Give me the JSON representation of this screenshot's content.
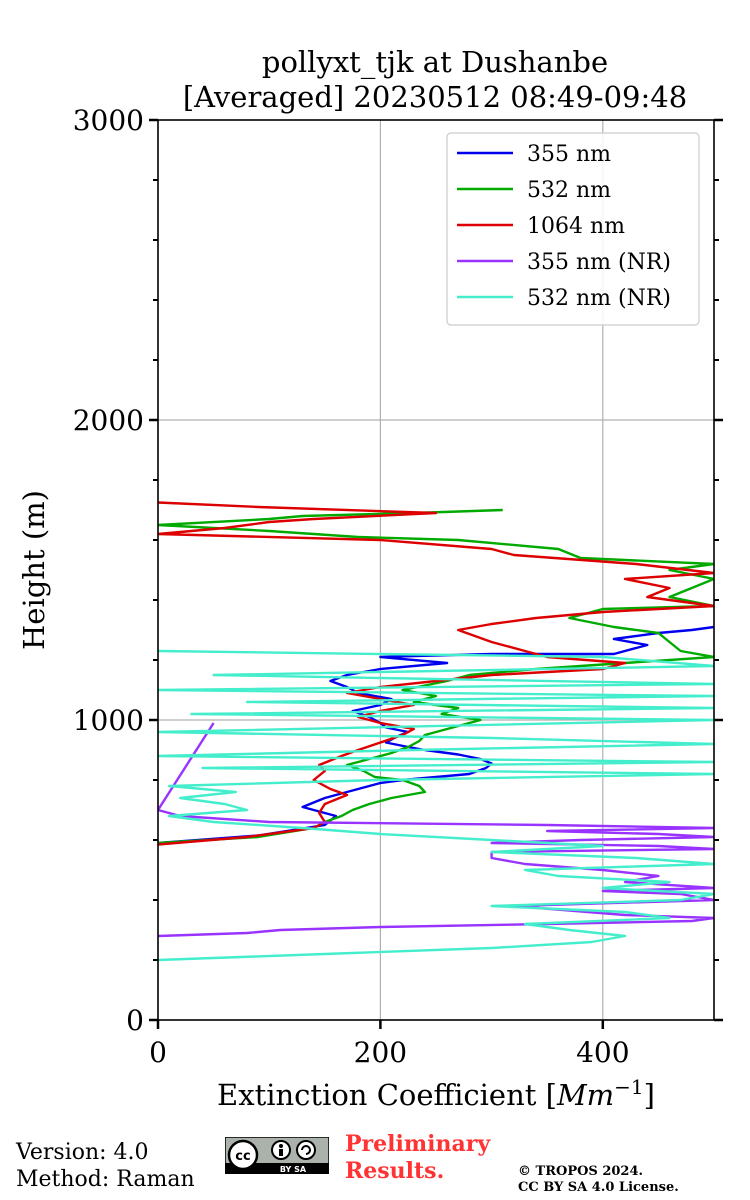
{
  "chart_data": {
    "type": "line",
    "title": "pollyxt_tjk at Dushanbe\n[Averaged] 20230512 08:49-09:48",
    "title_lines": [
      "pollyxt_tjk at Dushanbe",
      "[Averaged] 20230512 08:49-09:48"
    ],
    "xlabel": "Extinction Coefficient [Mm⁻¹]",
    "xlabel_main": "Extinction Coefficient [",
    "xlabel_unit": "Mm",
    "xlabel_exp": "−1",
    "xlabel_close": "]",
    "ylabel": "Height (m)",
    "xlim": [
      0,
      500
    ],
    "ylim": [
      0,
      3000
    ],
    "xticks": [
      0,
      200,
      400
    ],
    "yticks": [
      0,
      1000,
      2000,
      3000
    ],
    "yminor_step": 200,
    "grid": true,
    "legend_position": "top-right",
    "series": [
      {
        "name": "355 nm",
        "color": "#0000ee",
        "points": [
          [
            0,
            590
          ],
          [
            90,
            615
          ],
          [
            150,
            650
          ],
          [
            160,
            680
          ],
          [
            140,
            700
          ],
          [
            130,
            710
          ],
          [
            150,
            740
          ],
          [
            170,
            760
          ],
          [
            200,
            790
          ],
          [
            220,
            800
          ],
          [
            280,
            820
          ],
          [
            295,
            840
          ],
          [
            300,
            855
          ],
          [
            290,
            870
          ],
          [
            270,
            885
          ],
          [
            240,
            900
          ],
          [
            225,
            910
          ],
          [
            205,
            925
          ],
          [
            215,
            945
          ],
          [
            225,
            960
          ],
          [
            205,
            975
          ],
          [
            200,
            990
          ],
          [
            190,
            1010
          ],
          [
            175,
            1030
          ],
          [
            200,
            1050
          ],
          [
            210,
            1070
          ],
          [
            180,
            1090
          ],
          [
            170,
            1110
          ],
          [
            155,
            1130
          ],
          [
            170,
            1150
          ],
          [
            200,
            1170
          ],
          [
            260,
            1190
          ],
          [
            200,
            1210
          ],
          [
            300,
            1220
          ],
          [
            410,
            1220
          ],
          [
            440,
            1250
          ],
          [
            410,
            1270
          ],
          [
            450,
            1290
          ],
          [
            480,
            1300
          ],
          [
            500,
            1310
          ]
        ]
      },
      {
        "name": "532 nm",
        "color": "#00aa00",
        "points": [
          [
            0,
            590
          ],
          [
            90,
            610
          ],
          [
            140,
            640
          ],
          [
            150,
            660
          ],
          [
            165,
            680
          ],
          [
            175,
            700
          ],
          [
            190,
            720
          ],
          [
            210,
            740
          ],
          [
            240,
            760
          ],
          [
            235,
            780
          ],
          [
            220,
            800
          ],
          [
            195,
            810
          ],
          [
            185,
            830
          ],
          [
            170,
            850
          ],
          [
            190,
            870
          ],
          [
            210,
            890
          ],
          [
            225,
            910
          ],
          [
            235,
            930
          ],
          [
            240,
            950
          ],
          [
            270,
            980
          ],
          [
            290,
            1000
          ],
          [
            255,
            1020
          ],
          [
            270,
            1040
          ],
          [
            230,
            1060
          ],
          [
            250,
            1080
          ],
          [
            220,
            1100
          ],
          [
            260,
            1130
          ],
          [
            280,
            1150
          ],
          [
            340,
            1170
          ],
          [
            420,
            1190
          ],
          [
            500,
            1210
          ],
          [
            470,
            1230
          ],
          [
            460,
            1260
          ],
          [
            450,
            1290
          ],
          [
            410,
            1310
          ],
          [
            370,
            1340
          ],
          [
            400,
            1370
          ],
          [
            500,
            1380
          ],
          [
            460,
            1410
          ],
          [
            480,
            1440
          ],
          [
            500,
            1470
          ],
          [
            460,
            1500
          ],
          [
            500,
            1520
          ],
          [
            380,
            1540
          ],
          [
            360,
            1570
          ],
          [
            270,
            1600
          ],
          [
            180,
            1610
          ],
          [
            100,
            1630
          ],
          [
            0,
            1650
          ],
          [
            100,
            1670
          ],
          [
            130,
            1680
          ],
          [
            230,
            1690
          ],
          [
            310,
            1700
          ]
        ]
      },
      {
        "name": "1064 nm",
        "color": "#dd0000",
        "points": [
          [
            0,
            585
          ],
          [
            80,
            610
          ],
          [
            140,
            640
          ],
          [
            150,
            660
          ],
          [
            145,
            690
          ],
          [
            150,
            720
          ],
          [
            170,
            750
          ],
          [
            155,
            770
          ],
          [
            140,
            800
          ],
          [
            150,
            830
          ],
          [
            145,
            850
          ],
          [
            165,
            880
          ],
          [
            180,
            900
          ],
          [
            200,
            925
          ],
          [
            220,
            950
          ],
          [
            230,
            970
          ],
          [
            200,
            990
          ],
          [
            180,
            1010
          ],
          [
            200,
            1030
          ],
          [
            230,
            1050
          ],
          [
            200,
            1070
          ],
          [
            170,
            1090
          ],
          [
            200,
            1110
          ],
          [
            250,
            1130
          ],
          [
            300,
            1150
          ],
          [
            400,
            1170
          ],
          [
            420,
            1190
          ],
          [
            350,
            1210
          ],
          [
            330,
            1230
          ],
          [
            300,
            1260
          ],
          [
            270,
            1300
          ],
          [
            300,
            1320
          ],
          [
            340,
            1340
          ],
          [
            400,
            1360
          ],
          [
            500,
            1380
          ],
          [
            440,
            1410
          ],
          [
            460,
            1440
          ],
          [
            420,
            1470
          ],
          [
            500,
            1490
          ],
          [
            430,
            1520
          ],
          [
            320,
            1550
          ],
          [
            300,
            1570
          ],
          [
            200,
            1600
          ],
          [
            0,
            1620
          ],
          [
            60,
            1640
          ],
          [
            100,
            1660
          ],
          [
            140,
            1670
          ],
          [
            250,
            1690
          ],
          [
            90,
            1710
          ],
          [
            0,
            1725
          ]
        ]
      },
      {
        "name": "355 nm (NR)",
        "color": "#9933ff",
        "points": [
          [
            0,
            280
          ],
          [
            80,
            290
          ],
          [
            110,
            300
          ],
          [
            200,
            310
          ],
          [
            350,
            320
          ],
          [
            480,
            330
          ],
          [
            500,
            340
          ],
          [
            420,
            350
          ],
          [
            320,
            380
          ],
          [
            500,
            400
          ],
          [
            470,
            420
          ],
          [
            400,
            430
          ],
          [
            500,
            440
          ],
          [
            420,
            460
          ],
          [
            450,
            480
          ],
          [
            400,
            500
          ],
          [
            330,
            520
          ],
          [
            300,
            540
          ],
          [
            300,
            560
          ],
          [
            500,
            570
          ],
          [
            450,
            580
          ],
          [
            300,
            590
          ],
          [
            380,
            600
          ],
          [
            500,
            610
          ],
          [
            450,
            620
          ],
          [
            350,
            630
          ],
          [
            500,
            640
          ],
          [
            350,
            650
          ],
          [
            100,
            660
          ],
          [
            20,
            680
          ],
          [
            0,
            700
          ],
          [
            50,
            990
          ]
        ]
      },
      {
        "name": "532 nm (NR)",
        "color": "#44eecc",
        "points": [
          [
            0,
            200
          ],
          [
            150,
            220
          ],
          [
            300,
            240
          ],
          [
            390,
            260
          ],
          [
            420,
            280
          ],
          [
            370,
            300
          ],
          [
            330,
            320
          ],
          [
            460,
            340
          ],
          [
            420,
            360
          ],
          [
            300,
            380
          ],
          [
            470,
            400
          ],
          [
            500,
            420
          ],
          [
            400,
            440
          ],
          [
            460,
            460
          ],
          [
            360,
            480
          ],
          [
            330,
            500
          ],
          [
            500,
            520
          ],
          [
            430,
            540
          ],
          [
            300,
            560
          ],
          [
            400,
            580
          ],
          [
            300,
            600
          ],
          [
            200,
            620
          ],
          [
            130,
            640
          ],
          [
            50,
            660
          ],
          [
            10,
            680
          ],
          [
            80,
            700
          ],
          [
            60,
            720
          ],
          [
            20,
            740
          ],
          [
            70,
            760
          ],
          [
            10,
            780
          ],
          [
            200,
            800
          ],
          [
            500,
            820
          ],
          [
            40,
            840
          ],
          [
            500,
            860
          ],
          [
            0,
            880
          ],
          [
            230,
            900
          ],
          [
            500,
            920
          ],
          [
            300,
            940
          ],
          [
            0,
            960
          ],
          [
            500,
            1000
          ],
          [
            30,
            1020
          ],
          [
            500,
            1040
          ],
          [
            80,
            1060
          ],
          [
            500,
            1080
          ],
          [
            0,
            1100
          ],
          [
            500,
            1120
          ],
          [
            50,
            1150
          ],
          [
            500,
            1180
          ],
          [
            400,
            1210
          ],
          [
            0,
            1230
          ]
        ]
      }
    ]
  },
  "footer": {
    "version": "Version: 4.0",
    "method": "Method: Raman",
    "preliminary_line1": "Preliminary",
    "preliminary_line2": "Results.",
    "copyright_line1": "© TROPOS 2024.",
    "copyright_line2": "CC BY SA 4.0 License.",
    "license_badge_text": "BY  SA"
  }
}
